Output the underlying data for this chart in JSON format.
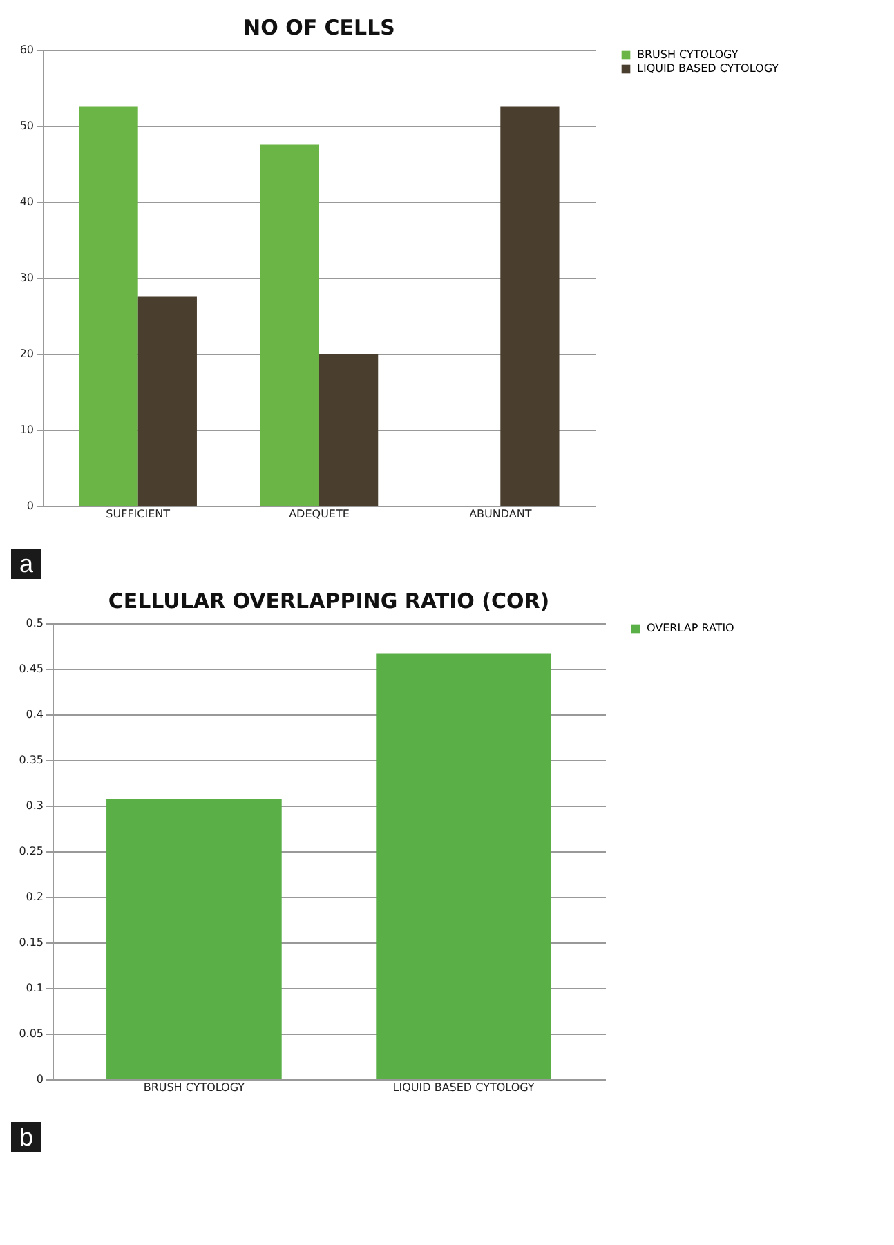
{
  "chart_data": [
    {
      "type": "bar",
      "title": "NO OF CELLS",
      "categories": [
        "SUFFICIENT",
        "ADEQUETE",
        "ABUNDANT"
      ],
      "series": [
        {
          "name": "BRUSH CYTOLOGY",
          "color": "#6ab545",
          "values": [
            52.5,
            47.5,
            0
          ]
        },
        {
          "name": "LIQUID BASED CYTOLOGY",
          "color": "#4a3f2e",
          "values": [
            27.5,
            20,
            52.5
          ]
        }
      ],
      "ylim": [
        0,
        60
      ],
      "yticks": [
        0,
        10,
        20,
        30,
        40,
        50,
        60
      ],
      "grid": "y",
      "legend": "right",
      "annotations": [
        "a"
      ]
    },
    {
      "type": "bar",
      "title": "CELLULAR OVERLAPPING  RATIO (COR)",
      "categories": [
        "BRUSH CYTOLOGY",
        "LIQUID BASED CYTOLOGY"
      ],
      "series": [
        {
          "name": "OVERLAP RATIO",
          "color": "#5aaf47",
          "values": [
            0.307,
            0.467
          ]
        }
      ],
      "ylim": [
        0,
        0.5
      ],
      "yticks": [
        0,
        0.05,
        0.1,
        0.15,
        0.2,
        0.25,
        0.3,
        0.35,
        0.4,
        0.45,
        0.5
      ],
      "grid": "y",
      "legend": "right",
      "annotations": [
        "b"
      ]
    }
  ]
}
